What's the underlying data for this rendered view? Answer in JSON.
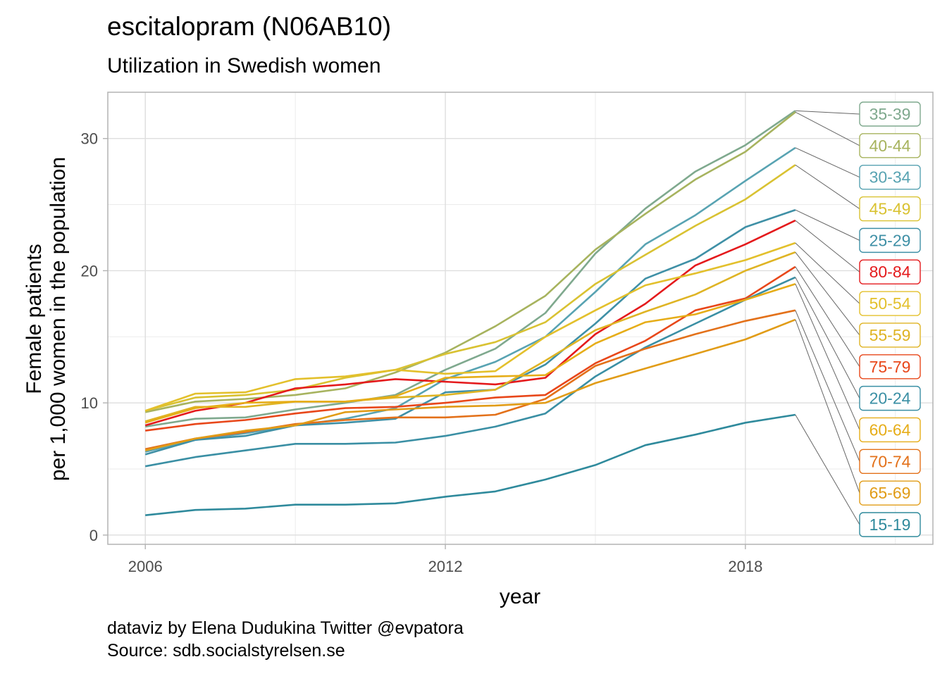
{
  "title": "escitalopram (N06AB10)",
  "subtitle": "Utilization in Swedish women",
  "caption": {
    "line1": "dataviz by Elena Dudukina Twitter @evpatora",
    "line2": "Source: sdb.socialstyrelsen.se"
  },
  "chart_data": {
    "type": "line",
    "xlabel": "year",
    "ylabel_line1": "Female patients",
    "ylabel_line2": "per 1,000 women in the population",
    "xlim": [
      2005.25,
      2021.75
    ],
    "ylim": [
      -0.7,
      33.5
    ],
    "x_ticks": [
      2006,
      2012,
      2018
    ],
    "y_ticks": [
      0,
      10,
      20,
      30
    ],
    "grid": true,
    "legend": "direct labels at right",
    "x": [
      2006,
      2007,
      2008,
      2009,
      2010,
      2011,
      2012,
      2013,
      2014,
      2015,
      2016,
      2017,
      2018,
      2019
    ],
    "series": [
      {
        "name": "35-39",
        "color": "#7fa98e",
        "values": [
          8.2,
          8.8,
          8.9,
          9.5,
          10.0,
          10.6,
          12.5,
          14.1,
          16.8,
          21.3,
          24.7,
          27.5,
          29.5,
          32.1
        ]
      },
      {
        "name": "40-44",
        "color": "#a7b35e",
        "values": [
          9.3,
          10.1,
          10.3,
          10.6,
          11.1,
          12.3,
          13.8,
          15.8,
          18.1,
          21.6,
          24.3,
          26.9,
          29.0,
          32.0
        ]
      },
      {
        "name": "30-34",
        "color": "#58a3b2",
        "values": [
          6.3,
          7.2,
          7.7,
          8.3,
          8.8,
          9.6,
          11.8,
          13.1,
          15.0,
          18.4,
          22.0,
          24.2,
          26.8,
          29.3
        ]
      },
      {
        "name": "45-49",
        "color": "#d9c232",
        "values": [
          9.4,
          10.4,
          10.6,
          11.0,
          11.9,
          12.5,
          13.7,
          14.6,
          16.1,
          19.0,
          21.2,
          23.4,
          25.4,
          28.0
        ]
      },
      {
        "name": "25-29",
        "color": "#3f90a6",
        "values": [
          6.1,
          7.2,
          7.5,
          8.3,
          8.5,
          8.8,
          10.8,
          11.0,
          12.9,
          16.0,
          19.4,
          20.9,
          23.3,
          24.6
        ]
      },
      {
        "name": "80-84",
        "color": "#e41a1c",
        "values": [
          8.3,
          9.4,
          10.0,
          11.1,
          11.4,
          11.8,
          11.6,
          11.4,
          11.9,
          15.2,
          17.5,
          20.4,
          22.0,
          23.8
        ]
      },
      {
        "name": "50-54",
        "color": "#e3c02c",
        "values": [
          9.4,
          10.7,
          10.8,
          11.8,
          12.0,
          12.5,
          12.2,
          12.4,
          15.0,
          17.0,
          18.9,
          19.8,
          20.8,
          22.1
        ]
      },
      {
        "name": "55-59",
        "color": "#dfb424",
        "values": [
          8.6,
          9.7,
          9.7,
          10.1,
          10.1,
          10.4,
          10.6,
          11.0,
          13.2,
          15.5,
          16.9,
          18.2,
          20.0,
          21.4
        ]
      },
      {
        "name": "75-79",
        "color": "#e8471a",
        "values": [
          7.9,
          8.4,
          8.7,
          9.2,
          9.6,
          9.7,
          10.0,
          10.4,
          10.6,
          13.0,
          14.7,
          17.0,
          17.9,
          20.3
        ]
      },
      {
        "name": "20-24",
        "color": "#3a8fa4",
        "values": [
          5.2,
          5.9,
          6.4,
          6.9,
          6.9,
          7.0,
          7.5,
          8.2,
          9.2,
          12.0,
          14.2,
          16.0,
          17.8,
          19.5
        ]
      },
      {
        "name": "60-64",
        "color": "#e6ad18",
        "values": [
          8.5,
          9.6,
          10.0,
          10.1,
          10.1,
          10.5,
          11.9,
          12.0,
          12.1,
          14.5,
          16.1,
          16.7,
          17.8,
          19.0
        ]
      },
      {
        "name": "70-74",
        "color": "#e3711a",
        "values": [
          6.5,
          7.3,
          7.8,
          8.4,
          8.7,
          8.9,
          8.9,
          9.1,
          10.3,
          12.8,
          14.1,
          15.2,
          16.2,
          17.0
        ]
      },
      {
        "name": "65-69",
        "color": "#e19c17",
        "values": [
          6.4,
          7.3,
          7.9,
          8.3,
          9.3,
          9.5,
          9.7,
          9.8,
          10.0,
          11.5,
          12.6,
          13.7,
          14.8,
          16.3
        ]
      },
      {
        "name": "15-19",
        "color": "#2f8a9c",
        "values": [
          1.5,
          1.9,
          2.0,
          2.3,
          2.3,
          2.4,
          2.9,
          3.3,
          4.2,
          5.3,
          6.8,
          7.6,
          8.5,
          9.1
        ]
      }
    ]
  }
}
